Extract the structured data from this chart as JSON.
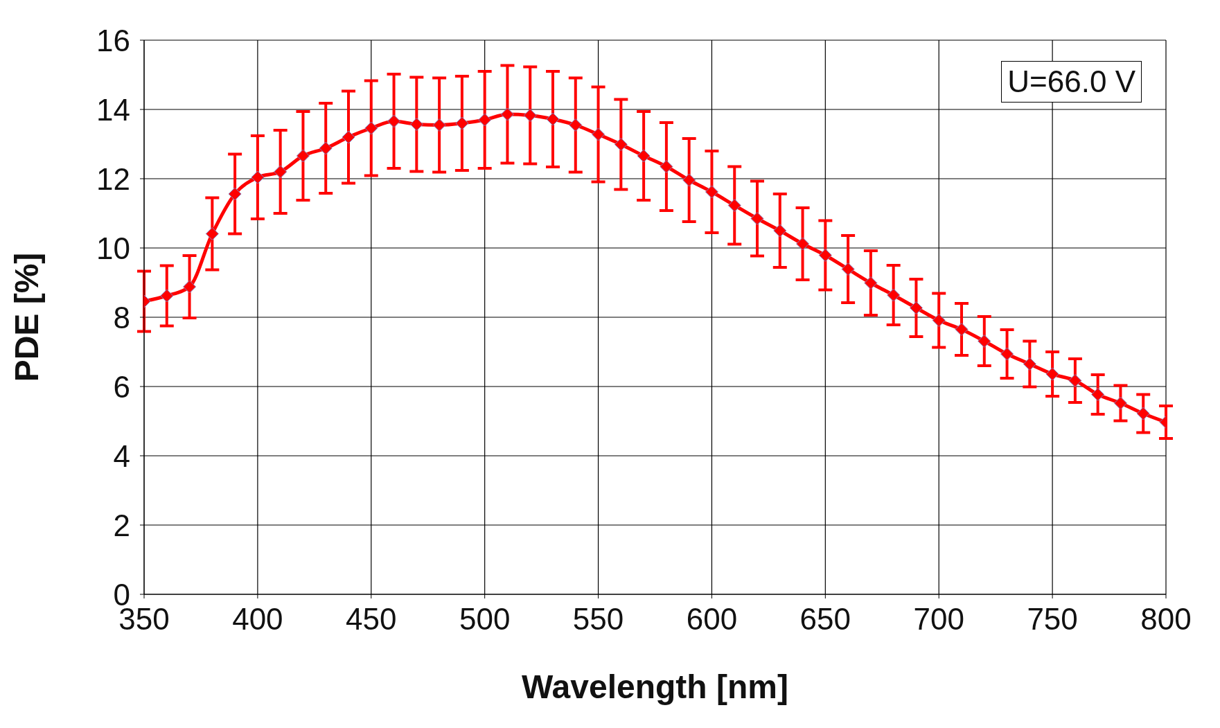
{
  "chart_data": {
    "type": "line",
    "xlabel": "Wavelength [nm]",
    "ylabel": "PDE [%]",
    "annotations": [
      "U=66.0 V"
    ],
    "x": [
      350,
      360,
      370,
      380,
      390,
      400,
      410,
      420,
      430,
      440,
      450,
      460,
      470,
      480,
      490,
      500,
      510,
      520,
      530,
      540,
      550,
      560,
      570,
      580,
      590,
      600,
      610,
      620,
      630,
      640,
      650,
      660,
      670,
      680,
      690,
      700,
      710,
      720,
      730,
      740,
      750,
      760,
      770,
      780,
      790,
      800
    ],
    "series": [
      {
        "color": "#ff0000",
        "values": [
          8.46,
          8.62,
          8.88,
          10.41,
          11.56,
          12.04,
          12.2,
          12.66,
          12.88,
          13.2,
          13.46,
          13.66,
          13.57,
          13.55,
          13.6,
          13.7,
          13.86,
          13.83,
          13.72,
          13.55,
          13.28,
          12.99,
          12.66,
          12.35,
          11.96,
          11.62,
          11.23,
          10.85,
          10.5,
          10.12,
          9.79,
          9.39,
          8.99,
          8.64,
          8.27,
          7.91,
          7.65,
          7.31,
          6.94,
          6.65,
          6.36,
          6.17,
          5.77,
          5.52,
          5.22,
          4.97
        ],
        "errors": [
          0.87,
          0.87,
          0.9,
          1.04,
          1.15,
          1.2,
          1.2,
          1.28,
          1.3,
          1.33,
          1.37,
          1.36,
          1.36,
          1.36,
          1.36,
          1.4,
          1.41,
          1.4,
          1.38,
          1.36,
          1.37,
          1.3,
          1.28,
          1.27,
          1.2,
          1.18,
          1.12,
          1.08,
          1.06,
          1.04,
          1.0,
          0.97,
          0.93,
          0.86,
          0.83,
          0.78,
          0.75,
          0.71,
          0.7,
          0.66,
          0.64,
          0.63,
          0.57,
          0.51,
          0.55,
          0.47
        ]
      }
    ],
    "xlim": [
      350,
      800
    ],
    "xticks": [
      350,
      400,
      450,
      500,
      550,
      600,
      650,
      700,
      750,
      800
    ],
    "ylim": [
      0,
      16
    ],
    "yticks": [
      0,
      2,
      4,
      6,
      8,
      10,
      12,
      14,
      16
    ],
    "grid": true,
    "marker": "diamond",
    "line_style": "solid"
  }
}
